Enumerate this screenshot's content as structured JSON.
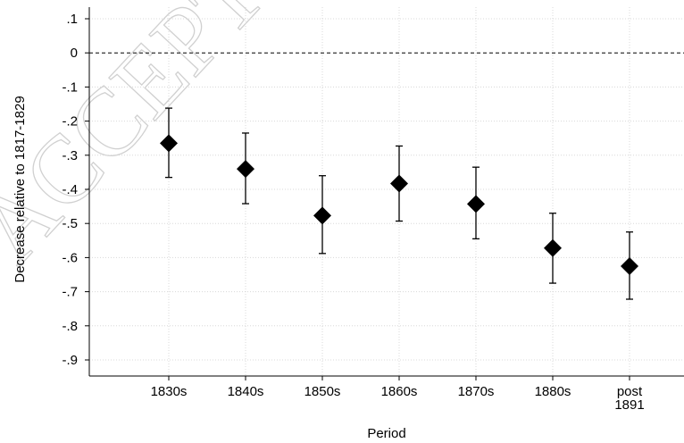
{
  "watermark": "ACCEPTED",
  "chart_data": {
    "type": "scatter",
    "style": "coefficient plot with confidence intervals",
    "xlabel": "Period",
    "ylabel": "Decrease relative to 1817-1829",
    "categories": [
      [
        "1830s"
      ],
      [
        "1840s"
      ],
      [
        "1850s"
      ],
      [
        "1860s"
      ],
      [
        "1870s"
      ],
      [
        "1880s"
      ],
      [
        "post",
        "1891"
      ]
    ],
    "values": [
      -0.265,
      -0.34,
      -0.477,
      -0.383,
      -0.443,
      -0.572,
      -0.625
    ],
    "ci_lower": [
      -0.365,
      -0.442,
      -0.588,
      -0.493,
      -0.545,
      -0.675,
      -0.722
    ],
    "ci_upper": [
      -0.162,
      -0.235,
      -0.36,
      -0.273,
      -0.335,
      -0.47,
      -0.525
    ],
    "yticks": [
      0.1,
      0,
      -0.1,
      -0.2,
      -0.3,
      -0.4,
      -0.5,
      -0.6,
      -0.7,
      -0.8,
      -0.9
    ],
    "ytick_labels": [
      ".1",
      "0",
      "-.1",
      "-.2",
      "-.3",
      "-.4",
      "-.5",
      "-.6",
      "-.7",
      "-.8",
      "-.9"
    ],
    "ylim": [
      -0.935,
      0.13
    ],
    "reference_line": 0,
    "grid": true,
    "marker": "diamond",
    "marker_color": "#000000"
  }
}
